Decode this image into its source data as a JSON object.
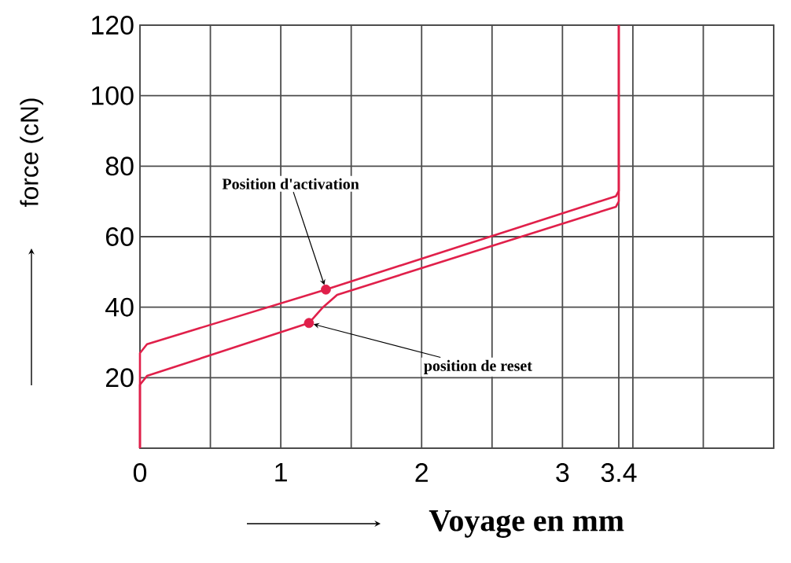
{
  "chart_data": {
    "type": "line",
    "xlabel": "Voyage en mm",
    "ylabel": "force (cN)",
    "xlim": [
      0,
      4.5
    ],
    "ylim": [
      0,
      120
    ],
    "xticks": [
      0,
      {
        "value": 0.5,
        "label": null
      },
      1,
      {
        "value": 1.5,
        "label": null
      },
      2,
      {
        "value": 2.5,
        "label": null
      },
      3,
      3.4,
      {
        "value": 3.5,
        "label": null
      },
      {
        "value": 4,
        "label": null
      },
      {
        "value": 4.5,
        "label": null
      }
    ],
    "yticks": [
      {
        "value": 0,
        "label": null
      },
      20,
      40,
      60,
      80,
      100,
      120
    ],
    "grid": true,
    "line_style": "solid",
    "marker": "none",
    "series": [
      {
        "color": "#e0204a",
        "x": [
          0,
          0,
          0.05,
          1.32,
          3.38,
          3.4,
          3.4
        ],
        "values": [
          0,
          27,
          29.5,
          45,
          71.5,
          73,
          120
        ]
      },
      {
        "color": "#e0204a",
        "x": [
          0,
          0,
          0.05,
          1.2,
          1.3,
          1.4,
          3.38,
          3.4,
          3.4
        ],
        "values": [
          0,
          18,
          20.5,
          35.5,
          40,
          43.5,
          68.5,
          70,
          120
        ]
      },
      {
        "type": "scatter",
        "marker": "circle",
        "color": "#e0204a",
        "x": [
          1.32,
          1.2
        ],
        "values": [
          45,
          35.5
        ]
      }
    ],
    "annotations": [
      {
        "text": "Position d'activation",
        "x": 1.32,
        "y": 45
      },
      {
        "text": "position de reset",
        "x": 1.2,
        "y": 35.5
      }
    ]
  }
}
